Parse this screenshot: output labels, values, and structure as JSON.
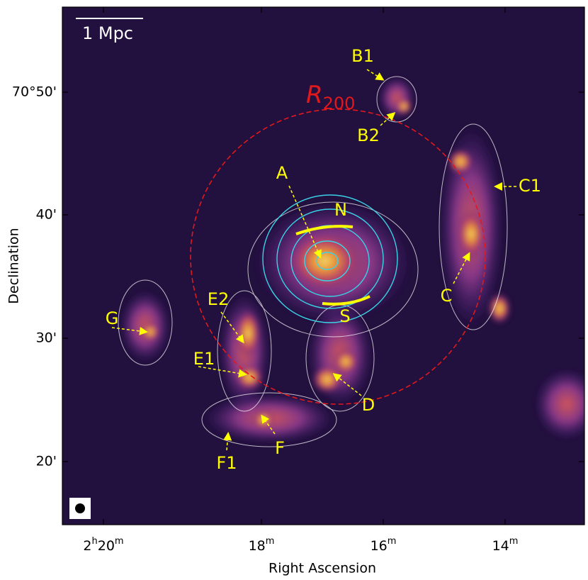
{
  "figure": {
    "x_axis_label": "Right Ascension",
    "y_axis_label": "Declination",
    "x_ticks": [
      "2h20m",
      "18m",
      "16m",
      "14m"
    ],
    "y_ticks": [
      "70°50'",
      "40'",
      "30'",
      "20'"
    ],
    "scale_bar": "1 Mpc",
    "r200": {
      "symbol": "R",
      "subscript": "200"
    },
    "annotations": [
      "B1",
      "B2",
      "A",
      "N",
      "S",
      "C1",
      "C",
      "E2",
      "G",
      "E1",
      "D",
      "F",
      "F1"
    ]
  }
}
